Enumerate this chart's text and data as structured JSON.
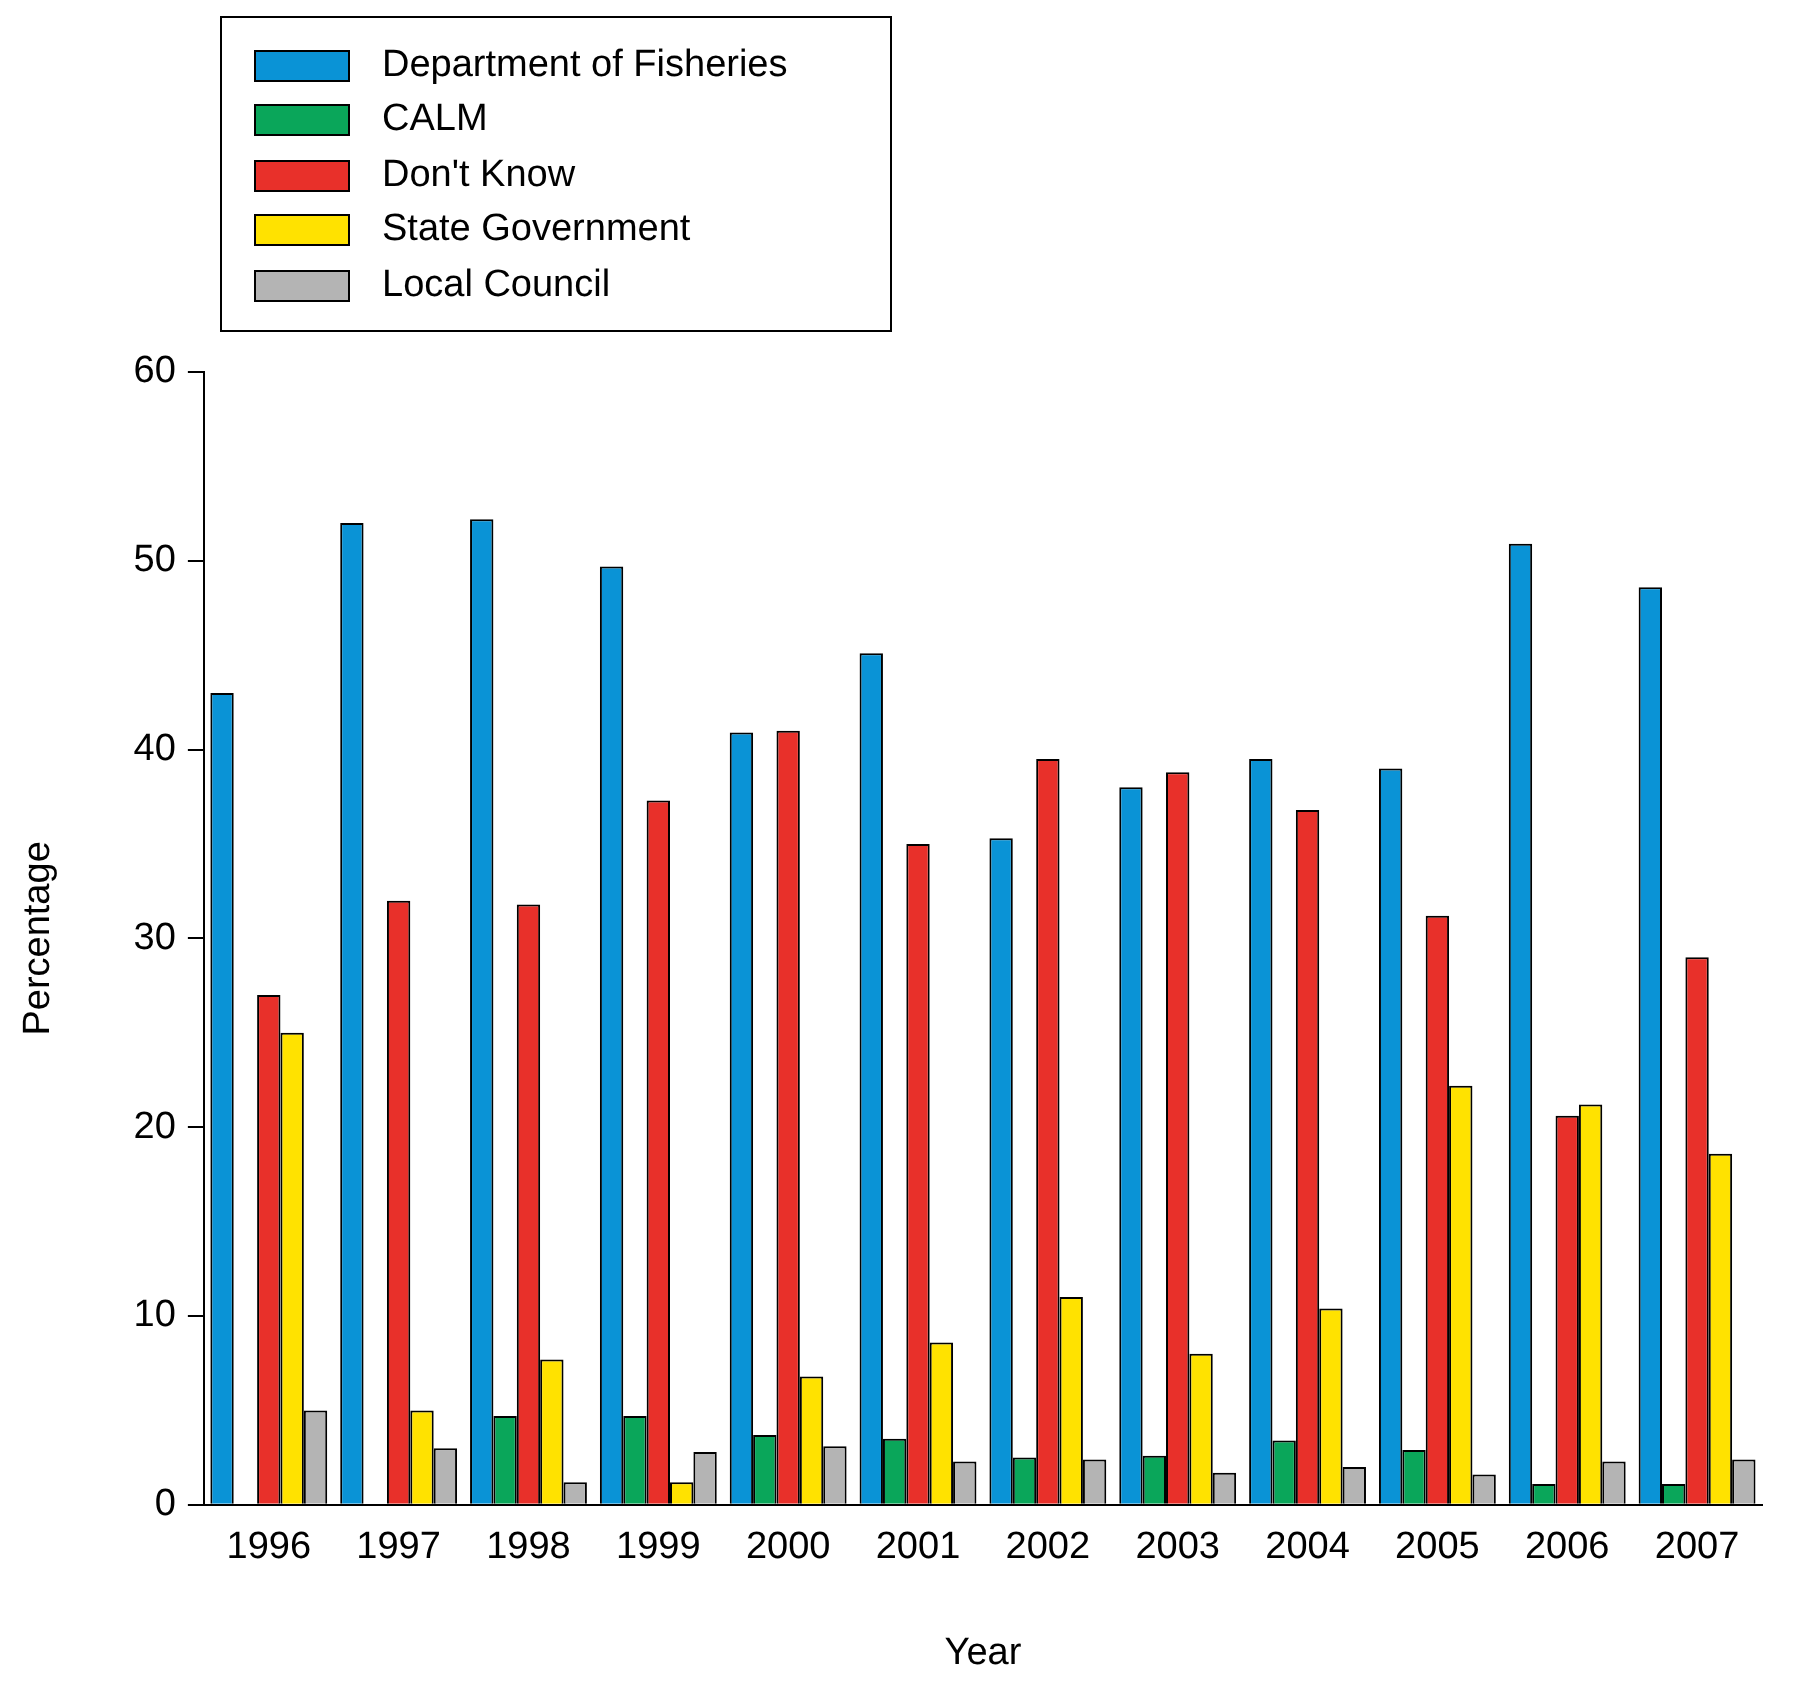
{
  "chart_data": {
    "type": "bar",
    "xlabel": "Year",
    "ylabel": "Percentage",
    "categories": [
      "1996",
      "1997",
      "1998",
      "1999",
      "2000",
      "2001",
      "2002",
      "2003",
      "2004",
      "2005",
      "2006",
      "2007"
    ],
    "series": [
      {
        "name": "Department of Fisheries",
        "color": "#0a93d6",
        "values": [
          43,
          52,
          52.2,
          49.7,
          40.9,
          45.1,
          35.3,
          38,
          39.5,
          39,
          50.9,
          48.6
        ]
      },
      {
        "name": "CALM",
        "color": "#0aa65a",
        "values": [
          null,
          null,
          4.7,
          4.7,
          3.7,
          3.5,
          2.5,
          2.6,
          3.4,
          2.9,
          1.1,
          1.1
        ]
      },
      {
        "name": "Don't Know",
        "color": "#e8302a",
        "values": [
          27,
          32,
          31.8,
          37.3,
          41,
          35,
          39.5,
          38.8,
          36.8,
          31.2,
          20.6,
          29
        ]
      },
      {
        "name": "State Government",
        "color": "#ffe200",
        "values": [
          25,
          5,
          7.7,
          1.2,
          6.8,
          8.6,
          11,
          8,
          10.4,
          22.2,
          21.2,
          18.6
        ]
      },
      {
        "name": "Local Council",
        "color": "#b4b4b4",
        "values": [
          5,
          3,
          1.2,
          2.8,
          3.1,
          2.3,
          2.4,
          1.7,
          2,
          1.6,
          2.3,
          2.4
        ]
      }
    ],
    "ylim": [
      0,
      60
    ],
    "yticks": [
      0,
      10,
      20,
      30,
      40,
      50,
      60
    ],
    "grid": false,
    "legend": "top left"
  }
}
